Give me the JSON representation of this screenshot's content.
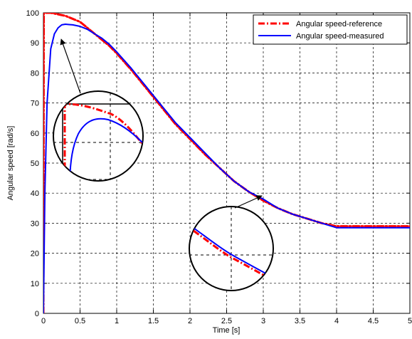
{
  "chart_data": {
    "type": "line",
    "xlabel": "Time [s]",
    "ylabel": "Angular speed [rad/s]",
    "xlim": [
      0,
      5
    ],
    "ylim": [
      0,
      100
    ],
    "x_ticks": [
      0,
      0.5,
      1,
      1.5,
      2,
      2.5,
      3,
      3.5,
      4,
      4.5,
      5
    ],
    "y_ticks": [
      0,
      10,
      20,
      30,
      40,
      50,
      60,
      70,
      80,
      90,
      100
    ],
    "x_tick_labels": [
      "0",
      "0.5",
      "1",
      "1.5",
      "2",
      "2.5",
      "3",
      "3.5",
      "4",
      "4.5",
      "5"
    ],
    "y_tick_labels": [
      "0",
      "10",
      "20",
      "30",
      "40",
      "50",
      "60",
      "70",
      "80",
      "90",
      "100"
    ],
    "grid": true,
    "legend_position": "top-right",
    "series": [
      {
        "name": "Angular speed-reference",
        "color": "#ff0000",
        "line_style": "dash-dot",
        "x": [
          0,
          0.005,
          0.05,
          0.1,
          0.2,
          0.3,
          0.4,
          0.5,
          0.6,
          0.7,
          0.8,
          0.9,
          1.0,
          1.2,
          1.4,
          1.6,
          1.8,
          2.0,
          2.2,
          2.4,
          2.6,
          2.8,
          3.0,
          3.2,
          3.4,
          3.6,
          3.8,
          4.0,
          4.5,
          5.0
        ],
        "y": [
          0,
          100,
          100,
          100,
          99.5,
          99,
          98,
          97,
          95,
          93,
          91,
          89,
          86.5,
          81,
          75,
          69,
          63,
          58,
          53,
          48.5,
          44,
          40.5,
          37.5,
          35,
          33,
          31.5,
          30,
          29,
          29,
          29
        ]
      },
      {
        "name": "Angular speed-measured",
        "color": "#0000ff",
        "line_style": "solid",
        "x": [
          0,
          0.02,
          0.05,
          0.1,
          0.15,
          0.2,
          0.25,
          0.3,
          0.35,
          0.4,
          0.5,
          0.6,
          0.7,
          0.8,
          0.9,
          1.0,
          1.2,
          1.4,
          1.6,
          1.8,
          2.0,
          2.2,
          2.4,
          2.6,
          2.8,
          3.0,
          3.2,
          3.4,
          3.6,
          3.8,
          4.0,
          4.5,
          5.0
        ],
        "y": [
          0,
          40,
          70,
          88,
          93,
          95,
          96,
          96.2,
          96.1,
          96,
          95.5,
          94.5,
          93,
          91.5,
          89.5,
          87,
          81.5,
          75.5,
          69.5,
          63.5,
          58.5,
          53.5,
          48.5,
          44,
          40.5,
          38,
          35,
          33,
          31.5,
          30,
          28.5,
          28.5,
          28.5
        ]
      }
    ],
    "annotations": [
      {
        "type": "zoom-circle",
        "center": [
          0.75,
          65
        ],
        "target": [
          0.3,
          95
        ],
        "description": "Zoom of initial rise region"
      },
      {
        "type": "zoom-circle",
        "center": [
          2.6,
          18
        ],
        "target": [
          3.0,
          38.5
        ],
        "description": "Zoom near tracking region"
      }
    ]
  }
}
